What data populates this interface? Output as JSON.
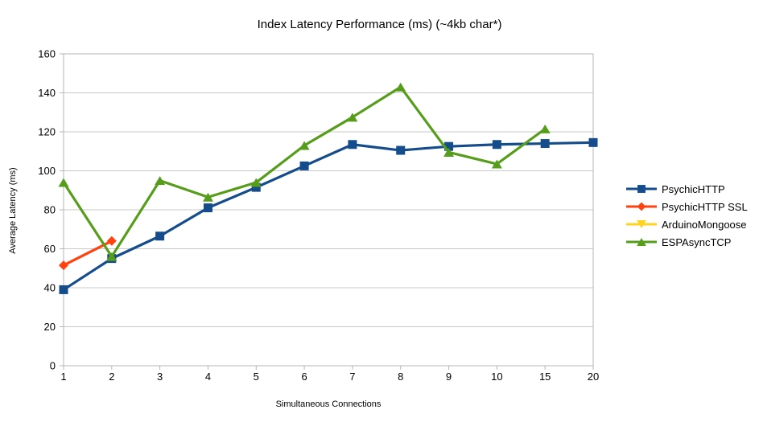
{
  "chart_data": {
    "type": "line",
    "title": "Index Latency Performance (ms) (~4kb char*)",
    "xlabel": "Simultaneous Connections",
    "ylabel": "Average Latency (ms)",
    "categories": [
      "1",
      "2",
      "3",
      "4",
      "5",
      "6",
      "7",
      "8",
      "9",
      "10",
      "15",
      "20"
    ],
    "ylim": [
      0,
      160
    ],
    "yticks": [
      0,
      20,
      40,
      60,
      80,
      100,
      120,
      140,
      160
    ],
    "grid": "horizontal-only",
    "legend_position": "right",
    "series": [
      {
        "name": "PsychicHTTP",
        "color": "#154D8C",
        "marker": "square",
        "values": [
          39,
          55,
          66.5,
          81,
          91.5,
          102.5,
          113.5,
          110.5,
          112.5,
          113.5,
          114,
          114.5
        ]
      },
      {
        "name": "PsychicHTTP SSL",
        "color": "#FF420E",
        "marker": "diamond",
        "values": [
          51.5,
          64,
          null,
          null,
          null,
          null,
          null,
          null,
          null,
          null,
          null,
          null
        ]
      },
      {
        "name": "ArduinoMongoose",
        "color": "#FFD320",
        "marker": "triangle-down",
        "values": [
          null,
          null,
          null,
          null,
          null,
          null,
          null,
          null,
          null,
          null,
          null,
          null
        ]
      },
      {
        "name": "ESPAsyncTCP",
        "color": "#579D1C",
        "marker": "triangle-up",
        "values": [
          94,
          56,
          95,
          86.5,
          94,
          113,
          127.5,
          143,
          109.5,
          103.5,
          121.5,
          null
        ]
      }
    ],
    "axis_color": "#b5b5b5",
    "grid_color": "#c8c8c8",
    "text_color": "#000000",
    "background_color": "#ffffff"
  }
}
